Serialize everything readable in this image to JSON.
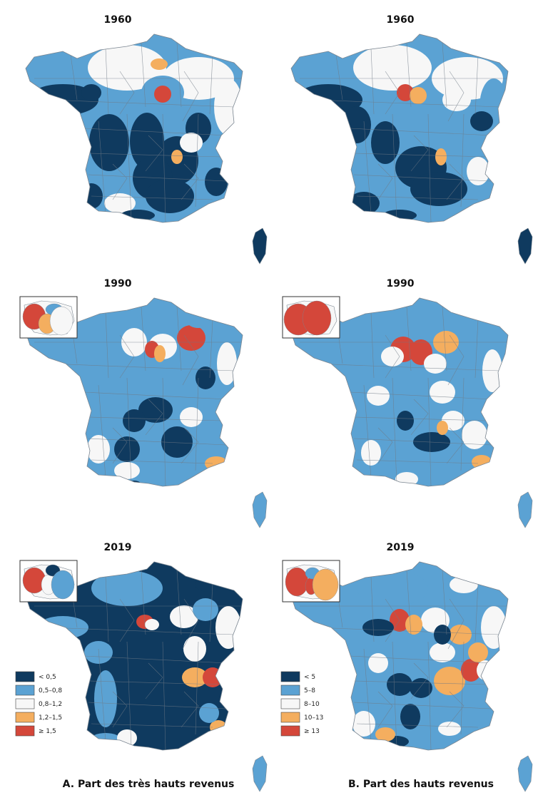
{
  "colors": {
    "c0": "#0f3a5f",
    "c1": "#5ba2d3",
    "c2": "#f7f7f7",
    "c3": "#f4ae5f",
    "c4": "#d4473a",
    "border": "#6f7a86"
  },
  "panels": [
    {
      "id": "a-1960",
      "year": "1960",
      "column": "A",
      "base": "c1",
      "inset": false
    },
    {
      "id": "b-1960",
      "year": "1960",
      "column": "B",
      "base": "c1",
      "inset": false
    },
    {
      "id": "a-1990",
      "year": "1990",
      "column": "A",
      "base": "c1",
      "inset": true
    },
    {
      "id": "b-1990",
      "year": "1990",
      "column": "B",
      "base": "c1",
      "inset": true
    },
    {
      "id": "a-2019",
      "year": "2019",
      "column": "A",
      "base": "c0",
      "inset": true
    },
    {
      "id": "b-2019",
      "year": "2019",
      "column": "B",
      "base": "c1",
      "inset": true
    }
  ],
  "legend_a": {
    "items": [
      {
        "label": "< 0,5",
        "color": "c0"
      },
      {
        "label": "0,5–0,8",
        "color": "c1"
      },
      {
        "label": "0,8–1,2",
        "color": "c2"
      },
      {
        "label": "1,2–1,5",
        "color": "c3"
      },
      {
        "label": "≥ 1,5",
        "color": "c4"
      }
    ]
  },
  "legend_b": {
    "items": [
      {
        "label": "< 5",
        "color": "c0"
      },
      {
        "label": "5–8",
        "color": "c1"
      },
      {
        "label": "8–10",
        "color": "c2"
      },
      {
        "label": "10–13",
        "color": "c3"
      },
      {
        "label": "≥ 13",
        "color": "c4"
      }
    ]
  },
  "captions": {
    "a": "A. Part des très hauts revenus",
    "b": "B. Part des hauts revenus"
  }
}
